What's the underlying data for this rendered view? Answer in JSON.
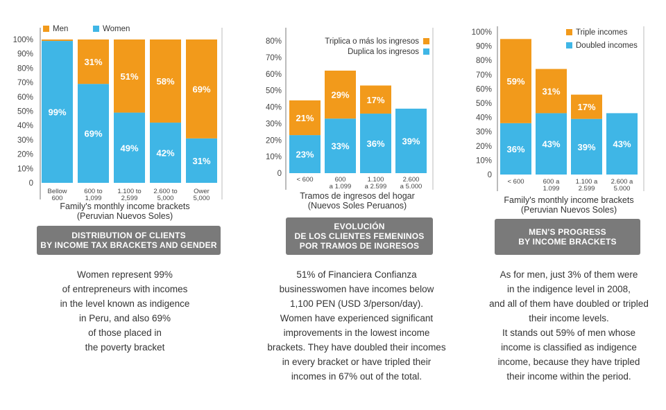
{
  "colors": {
    "orange": "#f29a1b",
    "blue": "#3fb6e6",
    "banner": "#7a7a7a"
  },
  "chart_data": [
    {
      "type": "bar",
      "stacked": true,
      "title": "DISTRIBUTION OF CLIENTS BY INCOME TAX BRACKETS AND GENDER",
      "title_lines": [
        "DISTRIBUTION OF CLIENTS",
        "BY INCOME TAX BRACKETS AND GENDER"
      ],
      "xlabel": "Family's monthly income brackets",
      "xlabel_lines": [
        "Family's monthly income brackets",
        "(Peruvian Nuevos Soles)"
      ],
      "ylabel": "",
      "ylim": [
        0,
        100
      ],
      "yticks": [
        "0",
        "10%",
        "20%",
        "30%",
        "40%",
        "50%",
        "60%",
        "70%",
        "80%",
        "90%",
        "100%"
      ],
      "legend_position": "top-left",
      "categories": [
        [
          "Bellow",
          "600"
        ],
        [
          "600 to",
          "1,099"
        ],
        [
          "1.100 to",
          "2,599"
        ],
        [
          "2.600 to",
          "5,000"
        ],
        [
          "Ower",
          "5,000"
        ]
      ],
      "series": [
        {
          "name": "Women",
          "color": "#3fb6e6",
          "values": [
            99,
            69,
            49,
            42,
            31
          ],
          "labels": [
            "99%",
            "69%",
            "49%",
            "42%",
            "31%"
          ]
        },
        {
          "name": "Men",
          "color": "#f29a1b",
          "values": [
            1,
            31,
            51,
            58,
            69
          ],
          "labels": [
            "",
            "31%",
            "51%",
            "58%",
            "69%"
          ]
        }
      ],
      "legend": [
        "Men",
        "Women"
      ]
    },
    {
      "type": "bar",
      "stacked": true,
      "title": "EVOLUCIÓN DE LOS CLIENTES FEMENINOS POR TRAMOS DE INGRESOS",
      "title_lines": [
        "EVOLUCIÓN",
        "DE LOS CLIENTES FEMENINOS",
        "POR TRAMOS DE INGRESOS"
      ],
      "xlabel": "Tramos de ingresos del hogar",
      "xlabel_lines": [
        "Tramos de ingresos del hogar",
        "(Nuevos Soles Peruanos)"
      ],
      "ylabel": "",
      "ylim": [
        0,
        80
      ],
      "yticks": [
        "0",
        "10%",
        "20%",
        "30%",
        "40%",
        "50%",
        "60%",
        "70%",
        "80%"
      ],
      "legend_position": "top-right",
      "categories": [
        [
          "< 600"
        ],
        [
          "600",
          "a 1.099"
        ],
        [
          "1.100",
          "a 2.599"
        ],
        [
          "2.600",
          "a 5.000"
        ]
      ],
      "series": [
        {
          "name": "Duplica los ingresos",
          "color": "#3fb6e6",
          "values": [
            23,
            33,
            36,
            39
          ],
          "labels": [
            "23%",
            "33%",
            "36%",
            "39%"
          ]
        },
        {
          "name": "Triplica o más los ingresos",
          "color": "#f29a1b",
          "values": [
            21,
            29,
            17,
            0
          ],
          "labels": [
            "21%",
            "29%",
            "17%",
            ""
          ]
        }
      ],
      "legend": [
        "Triplica o más los ingresos",
        "Duplica los ingresos"
      ]
    },
    {
      "type": "bar",
      "stacked": true,
      "title": "MEN'S PROGRESS BY INCOME BRACKETS",
      "title_lines": [
        "MEN'S PROGRESS",
        "BY INCOME BRACKETS"
      ],
      "xlabel": "Family's monthly income brackets",
      "xlabel_lines": [
        "Family's monthly income brackets",
        "(Peruvian Nuevos Soles)"
      ],
      "ylabel": "",
      "ylim": [
        0,
        100
      ],
      "yticks": [
        "0",
        "10%",
        "20%",
        "30%",
        "40%",
        "50%",
        "60%",
        "70%",
        "80%",
        "90%",
        "100%"
      ],
      "legend_position": "top-right",
      "categories": [
        [
          "< 600"
        ],
        [
          "600 a",
          "1.099"
        ],
        [
          "1.100 a",
          "2.599"
        ],
        [
          "2.600 a",
          "5.000"
        ]
      ],
      "series": [
        {
          "name": "Doubled incomes",
          "color": "#3fb6e6",
          "values": [
            36,
            43,
            39,
            43
          ],
          "labels": [
            "36%",
            "43%",
            "39%",
            "43%"
          ]
        },
        {
          "name": "Triple incomes",
          "color": "#f29a1b",
          "values": [
            59,
            31,
            17,
            0
          ],
          "labels": [
            "59%",
            "31%",
            "17%",
            ""
          ]
        }
      ],
      "legend": [
        "Triple incomes",
        "Doubled incomes"
      ]
    }
  ],
  "descriptions": [
    [
      "Women represent 99%",
      "of entrepreneurs with incomes",
      "in the level known as indigence",
      "in Peru, and also 69%",
      "of those placed in",
      "the poverty bracket"
    ],
    [
      "51% of Financiera Confianza",
      "businesswomen have incomes below",
      "1,100 PEN (USD 3/person/day).",
      "Women have experienced significant",
      "improvements in the lowest income",
      "brackets. They have doubled their incomes",
      "in every bracket or have tripled their",
      "incomes in 67% out of the total."
    ],
    [
      "As for men, just 3% of them were",
      "in the indigence level in 2008,",
      "and all of them have doubled or tripled",
      "their income levels.",
      "It stands out 59% of men whose",
      "income is classified as indigence",
      "income, because they have tripled",
      "their income within the period."
    ]
  ]
}
